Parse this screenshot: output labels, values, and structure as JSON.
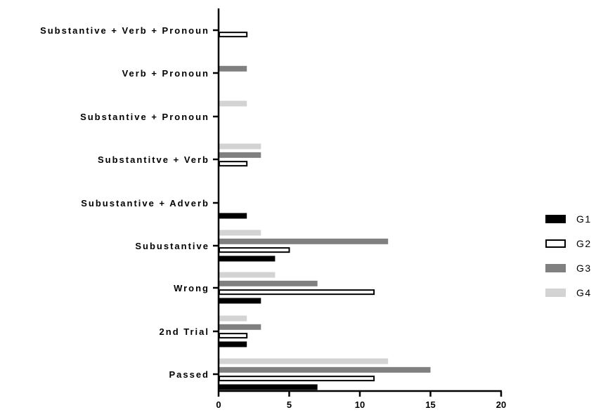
{
  "chart_data": {
    "type": "bar",
    "orientation": "horizontal",
    "categories": [
      "Passed",
      "2nd Trial",
      "Wrong",
      "Subustantive",
      "Subustantive + Adverb",
      "Substantitve + Verb",
      "Substantive + Pronoun",
      "Verb + Pronoun",
      "Substantive + Verb + Pronoun"
    ],
    "series": [
      {
        "name": "G1",
        "values": [
          7,
          2,
          3,
          4,
          2,
          0,
          0,
          0,
          0
        ],
        "color": "#000000",
        "style": "solid"
      },
      {
        "name": "G2",
        "values": [
          11,
          2,
          11,
          5,
          0,
          2,
          0,
          0,
          2
        ],
        "color": "#ffffff",
        "stroke": "#000000",
        "style": "outline"
      },
      {
        "name": "G3",
        "values": [
          15,
          3,
          7,
          12,
          0,
          3,
          0,
          2,
          0
        ],
        "color": "#808080",
        "style": "solid"
      },
      {
        "name": "G4",
        "values": [
          12,
          2,
          4,
          3,
          0,
          3,
          2,
          0,
          0
        ],
        "color": "#d3d3d3",
        "style": "solid"
      }
    ],
    "xlim": [
      0,
      20
    ],
    "xticks": [
      0,
      5,
      10,
      15,
      20
    ],
    "grid": false,
    "legend_position": "right"
  }
}
